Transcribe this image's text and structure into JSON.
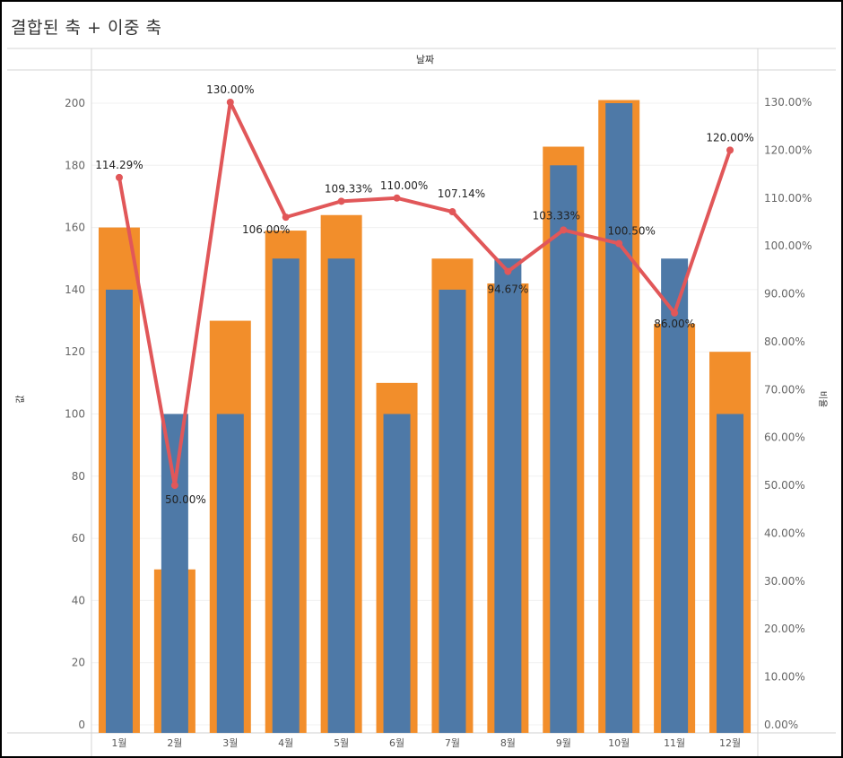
{
  "title": "결합된 축 + 이중 축",
  "chart_data": {
    "type": "bar",
    "title": "결합된 축 + 이중 축",
    "column_header": "날짜",
    "categories": [
      "1월",
      "2월",
      "3월",
      "4월",
      "5월",
      "6월",
      "7월",
      "8월",
      "9월",
      "10월",
      "11월",
      "12월"
    ],
    "left_axis": {
      "label": "값",
      "ylim": [
        0,
        200
      ],
      "ticks": [
        0,
        20,
        40,
        60,
        80,
        100,
        120,
        140,
        160,
        180,
        200
      ]
    },
    "right_axis": {
      "label": "비율",
      "ylim": [
        0,
        130
      ],
      "ticks": [
        "0.00%",
        "10.00%",
        "20.00%",
        "30.00%",
        "40.00%",
        "50.00%",
        "60.00%",
        "70.00%",
        "80.00%",
        "90.00%",
        "100.00%",
        "110.00%",
        "120.00%",
        "130.00%"
      ],
      "tick_values": [
        0,
        10,
        20,
        30,
        40,
        50,
        60,
        70,
        80,
        90,
        100,
        110,
        120,
        130
      ]
    },
    "series": [
      {
        "values": [
          160,
          50,
          130,
          159,
          164,
          110,
          150,
          142,
          186,
          201,
          129,
          120
        ],
        "color": "#f28e2b",
        "kind": "bar-wide"
      },
      {
        "values": [
          140,
          100,
          100,
          150,
          150,
          100,
          140,
          150,
          180,
          200,
          150,
          100
        ],
        "color": "#4e79a7",
        "kind": "bar-narrow"
      },
      {
        "values": [
          114.29,
          50.0,
          130.0,
          106.0,
          109.33,
          110.0,
          107.14,
          94.67,
          103.33,
          100.5,
          86.0,
          120.0
        ],
        "color": "#e15759",
        "kind": "line",
        "axis": "right",
        "labels": [
          "114.29%",
          "50.00%",
          "130.00%",
          "106.00%",
          "109.33%",
          "110.00%",
          "107.14%",
          "94.67%",
          "103.33%",
          "100.50%",
          "86.00%",
          "120.00%"
        ]
      }
    ],
    "grid": true
  }
}
